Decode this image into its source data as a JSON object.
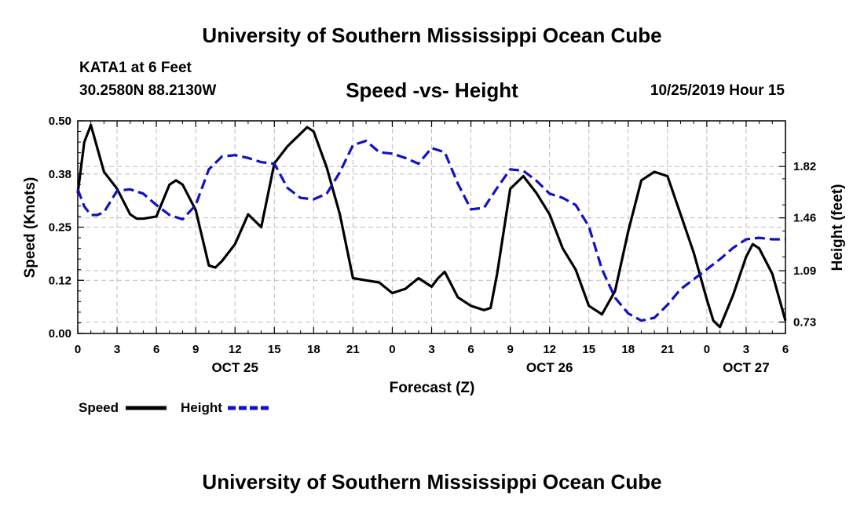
{
  "header": {
    "title": "University of Southern Mississippi Ocean Cube",
    "station": "KATA1 at 6 Feet",
    "coords": "30.2580N 88.2130W",
    "chart_title": "Speed -vs- Height",
    "run_time": "10/25/2019 Hour 15"
  },
  "footer": {
    "title": "University of Southern Mississippi Ocean Cube"
  },
  "colors": {
    "speed": "#000000",
    "height": "#1010c8",
    "grid": "#bbbbbb"
  },
  "chart_data": {
    "type": "line",
    "title": "Speed -vs- Height",
    "xlabel": "Forecast (Z)",
    "ylabel": "Speed (Knots)",
    "y2label": "Height (feet)",
    "xlim": [
      0,
      54
    ],
    "ylim": [
      0,
      0.5
    ],
    "y2lim": [
      0.65,
      2.14
    ],
    "x_ticks": [
      0,
      3,
      6,
      9,
      12,
      15,
      18,
      21,
      24,
      27,
      30,
      33,
      36,
      39,
      42,
      45,
      48,
      51,
      54
    ],
    "x_tick_labels": [
      "0",
      "3",
      "6",
      "9",
      "12",
      "15",
      "18",
      "21",
      "0",
      "3",
      "6",
      "9",
      "12",
      "15",
      "18",
      "21",
      "0",
      "3",
      "6"
    ],
    "y_ticks": [
      0.0,
      0.125,
      0.25,
      0.375,
      0.5
    ],
    "y_tick_labels": [
      "0.00",
      "0.12",
      "0.25",
      "0.38",
      "0.50"
    ],
    "y2_ticks": [
      0.73,
      1.09,
      1.46,
      1.82
    ],
    "y2_tick_labels": [
      "0.73",
      "1.09",
      "1.46",
      "1.82"
    ],
    "date_labels": [
      {
        "x": 12,
        "label": "OCT 25"
      },
      {
        "x": 36,
        "label": "OCT 26"
      },
      {
        "x": 51,
        "label": "OCT 27"
      }
    ],
    "grid": true,
    "legend": {
      "position": "bottom-left",
      "entries": [
        "Speed",
        "Height"
      ]
    },
    "series": [
      {
        "name": "Speed",
        "axis": "left",
        "style": "solid",
        "x": [
          0,
          0.5,
          1,
          2,
          3,
          4,
          4.5,
          5,
          6,
          7,
          7.5,
          8,
          9,
          10,
          10.5,
          11,
          12,
          13,
          14,
          15,
          16,
          17,
          17.5,
          18,
          19,
          20,
          21,
          22,
          23,
          24,
          25,
          26,
          27,
          27.5,
          28,
          29,
          30,
          31,
          31.5,
          32,
          33,
          34,
          35,
          36,
          37,
          38,
          39,
          40,
          41,
          42,
          43,
          44,
          45,
          46,
          47,
          48,
          48.5,
          49,
          50,
          51,
          51.5,
          52,
          53,
          54
        ],
        "y": [
          0.33,
          0.45,
          0.49,
          0.38,
          0.34,
          0.28,
          0.27,
          0.27,
          0.275,
          0.35,
          0.36,
          0.35,
          0.29,
          0.16,
          0.155,
          0.17,
          0.21,
          0.28,
          0.25,
          0.4,
          0.44,
          0.47,
          0.485,
          0.475,
          0.39,
          0.28,
          0.13,
          0.125,
          0.12,
          0.095,
          0.105,
          0.13,
          0.11,
          0.13,
          0.145,
          0.085,
          0.065,
          0.055,
          0.06,
          0.14,
          0.34,
          0.37,
          0.33,
          0.28,
          0.2,
          0.15,
          0.065,
          0.045,
          0.1,
          0.24,
          0.36,
          0.38,
          0.37,
          0.28,
          0.19,
          0.08,
          0.03,
          0.015,
          0.09,
          0.18,
          0.21,
          0.2,
          0.14,
          0.03
        ]
      },
      {
        "name": "Height",
        "axis": "right",
        "style": "dashed",
        "x": [
          0,
          0.5,
          1,
          1.5,
          2,
          3,
          4,
          5,
          6,
          7,
          8,
          9,
          10,
          11,
          12,
          13,
          14,
          15,
          16,
          17,
          18,
          19,
          20,
          21,
          22,
          23,
          24,
          25,
          26,
          27,
          28,
          29,
          30,
          31,
          32,
          33,
          34,
          35,
          36,
          37,
          38,
          39,
          40,
          41,
          42,
          43,
          44,
          45,
          46,
          47,
          48,
          49,
          50,
          51,
          52,
          53,
          54
        ],
        "y": [
          1.66,
          1.54,
          1.48,
          1.48,
          1.5,
          1.65,
          1.66,
          1.63,
          1.55,
          1.48,
          1.45,
          1.55,
          1.8,
          1.89,
          1.9,
          1.88,
          1.85,
          1.84,
          1.67,
          1.6,
          1.59,
          1.63,
          1.78,
          1.97,
          2.0,
          1.92,
          1.91,
          1.88,
          1.84,
          1.95,
          1.92,
          1.7,
          1.52,
          1.53,
          1.67,
          1.8,
          1.79,
          1.72,
          1.63,
          1.6,
          1.55,
          1.4,
          1.1,
          0.9,
          0.79,
          0.74,
          0.76,
          0.85,
          0.96,
          1.03,
          1.1,
          1.17,
          1.25,
          1.31,
          1.32,
          1.31,
          1.31
        ]
      }
    ]
  }
}
